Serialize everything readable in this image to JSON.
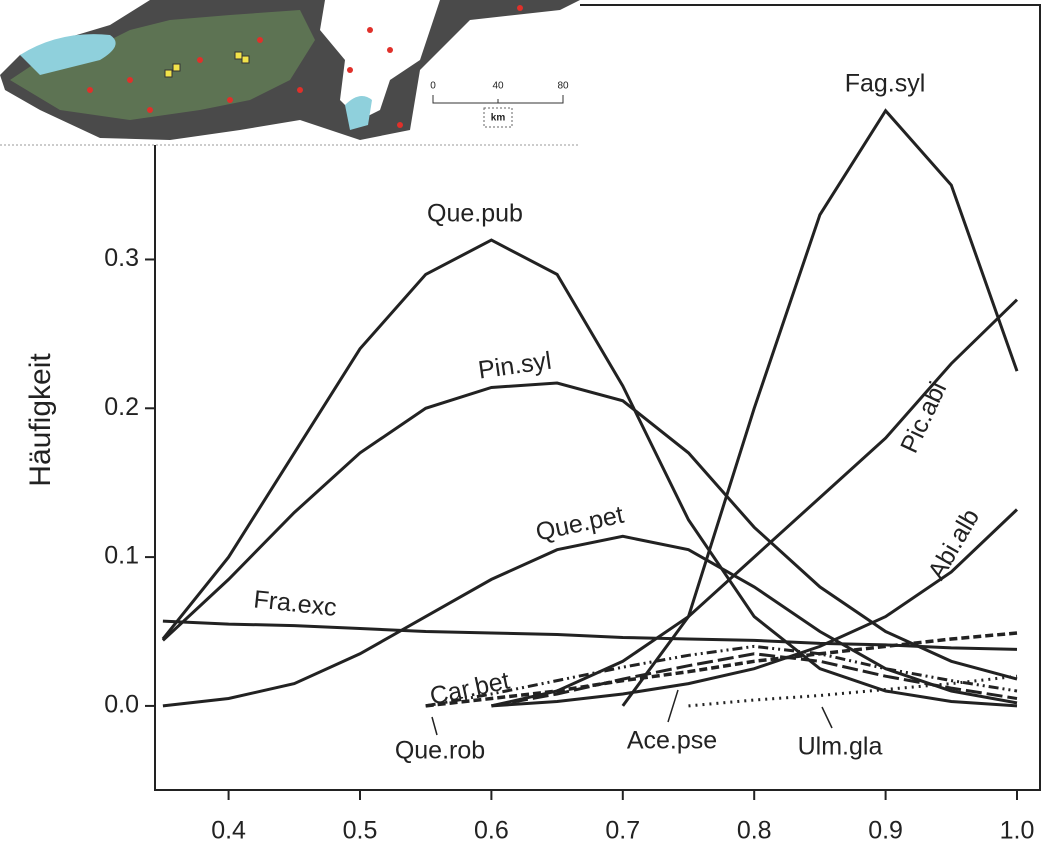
{
  "chart_data": {
    "type": "line",
    "ylabel": "Häufigkeit",
    "x": [
      0.35,
      0.4,
      0.45,
      0.5,
      0.55,
      0.6,
      0.65,
      0.7,
      0.75,
      0.8,
      0.85,
      0.9,
      0.95,
      1.0
    ],
    "xlim": [
      0.344,
      1.0175
    ],
    "ylim": [
      -0.0565,
      0.471
    ],
    "xticks": [
      0.4,
      0.5,
      0.6,
      0.7,
      0.8,
      0.9,
      {
        "value": 1.0,
        "label": "1.0"
      }
    ],
    "yticks": [
      {
        "value": 0,
        "label": "0.0"
      },
      0.1,
      0.2,
      0.3
    ],
    "series": [
      {
        "name": "Que.pub",
        "color": "#222222",
        "style": "solid",
        "values": [
          0.045,
          0.1,
          0.17,
          0.24,
          0.29,
          0.313,
          0.29,
          0.215,
          0.125,
          0.06,
          0.025,
          0.01,
          0.003,
          0.0
        ]
      },
      {
        "name": "Pin.syl",
        "color": "#222222",
        "style": "solid",
        "values": [
          0.044,
          0.085,
          0.13,
          0.17,
          0.2,
          0.214,
          0.217,
          0.205,
          0.17,
          0.12,
          0.08,
          0.05,
          0.03,
          0.018
        ]
      },
      {
        "name": "Que.pet",
        "color": "#222222",
        "style": "solid",
        "values": [
          0.0,
          0.005,
          0.015,
          0.035,
          0.06,
          0.085,
          0.105,
          0.114,
          0.105,
          0.08,
          0.05,
          0.025,
          0.01,
          0.002
        ]
      },
      {
        "name": "Fag.syl",
        "color": "#222222",
        "style": "solid",
        "values": [
          null,
          null,
          null,
          null,
          null,
          null,
          null,
          0.0,
          0.06,
          0.2,
          0.33,
          0.4,
          0.35,
          0.225
        ]
      },
      {
        "name": "Pic.abi",
        "color": "#222222",
        "style": "solid",
        "values": [
          null,
          null,
          null,
          null,
          null,
          0.0,
          0.01,
          0.03,
          0.06,
          0.1,
          0.14,
          0.18,
          0.23,
          0.273
        ]
      },
      {
        "name": "Abi.alb",
        "color": "#222222",
        "style": "solid",
        "values": [
          null,
          null,
          null,
          null,
          null,
          0.0,
          0.003,
          0.008,
          0.015,
          0.025,
          0.04,
          0.06,
          0.09,
          0.132
        ]
      },
      {
        "name": "Fra.exc",
        "color": "#222222",
        "style": "solid",
        "values": [
          0.057,
          0.055,
          0.054,
          0.052,
          0.05,
          0.049,
          0.048,
          0.046,
          0.045,
          0.044,
          0.042,
          0.041,
          0.039,
          0.038
        ]
      },
      {
        "name": "Car.bet",
        "color": "#222222",
        "style": "dash-dot",
        "values": [
          null,
          null,
          null,
          null,
          0.0,
          0.008,
          0.017,
          0.026,
          0.034,
          0.04,
          0.035,
          0.025,
          0.017,
          0.01
        ]
      },
      {
        "name": "Que.rob",
        "color": "#222222",
        "style": "dashed",
        "values": [
          null,
          null,
          null,
          null,
          0.0,
          0.005,
          0.01,
          0.017,
          0.023,
          0.03,
          0.035,
          0.04,
          0.045,
          0.049
        ]
      },
      {
        "name": "Ace.pse",
        "color": "#222222",
        "style": "long-dash",
        "values": [
          null,
          null,
          null,
          null,
          null,
          0.0,
          0.008,
          0.018,
          0.027,
          0.035,
          0.03,
          0.02,
          0.012,
          0.005
        ]
      },
      {
        "name": "Ulm.gla",
        "color": "#222222",
        "style": "dotted",
        "values": [
          null,
          null,
          null,
          null,
          null,
          null,
          null,
          null,
          0.0,
          0.004,
          0.007,
          0.011,
          0.015,
          0.02
        ]
      }
    ]
  },
  "inset": {
    "scale_labels": [
      "0",
      "40",
      "80"
    ],
    "unit": "km"
  }
}
